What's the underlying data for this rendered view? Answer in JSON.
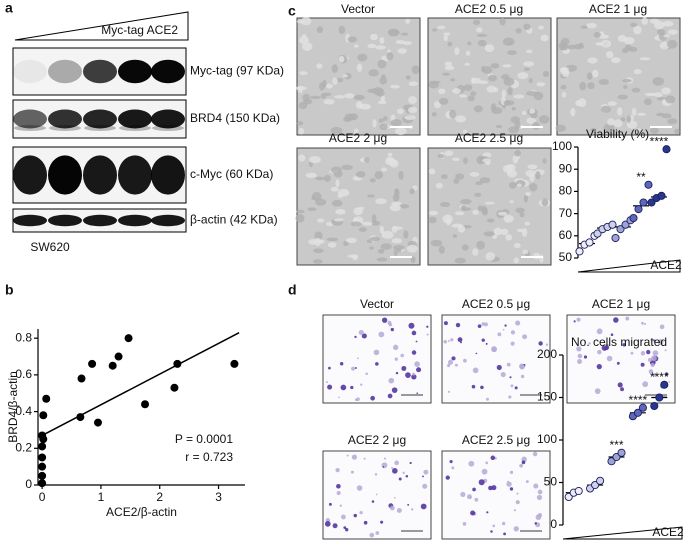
{
  "panel_labels": [
    "a",
    "b",
    "c",
    "d"
  ],
  "blot": {
    "treatment": "Myc-tag ACE2",
    "bands": [
      "Myc-tag (97 KDa)",
      "BRD4 (150 KDa)",
      "c-Myc (60 KDa)",
      "β-actin (42 KDa)"
    ],
    "cell_line": "SW620"
  },
  "micrographs": {
    "viability_images": [
      "Vector",
      "ACE2 0.5 μg",
      "ACE2 1 μg",
      "ACE2 2 μg",
      "ACE2 2.5 μg"
    ],
    "migration_images": [
      "Vector",
      "ACE2 0.5 μg",
      "ACE2 1 μg",
      "ACE2 2 μg",
      "ACE2 2.5 μg"
    ]
  },
  "chart_data": [
    {
      "type": "scatter",
      "x_label": "ACE2/β-actin",
      "y_label": "BRD4/β-actin",
      "annotations": [
        "P = 0.0001",
        "r = 0.723"
      ],
      "x": [
        0.02,
        0.07,
        0.0,
        0.02,
        0.0,
        0.0,
        0.0,
        0.0,
        0.0,
        0.65,
        0.67,
        0.85,
        0.95,
        1.2,
        1.3,
        1.47,
        1.75,
        2.25,
        2.3,
        3.27
      ],
      "values": [
        0.38,
        0.47,
        0.27,
        0.25,
        0.21,
        0.15,
        0.1,
        0.05,
        0.01,
        0.37,
        0.58,
        0.66,
        0.34,
        0.65,
        0.7,
        0.8,
        0.44,
        0.53,
        0.66,
        0.66
      ],
      "color": "#000000",
      "fit": {
        "x": [
          0,
          3.35
        ],
        "y": [
          0.27,
          0.83
        ]
      },
      "xlim": [
        -0.07,
        3.45
      ],
      "xticks": [
        0,
        1,
        2,
        3
      ],
      "ylim": [
        0,
        0.85
      ],
      "yticks": [
        0,
        0.2,
        0.4,
        0.6,
        0.8
      ]
    },
    {
      "type": "dot",
      "title": "Viability (%)",
      "x_label": "ACE2",
      "ylim": [
        50,
        100
      ],
      "yticks": [
        50,
        60,
        70,
        80,
        90,
        100
      ],
      "groups": [
        {
          "color": "#efeef8",
          "values": [
            53,
            56,
            57,
            60
          ]
        },
        {
          "color": "#cfd0ea",
          "values": [
            61,
            63,
            64,
            65
          ]
        },
        {
          "color": "#9ea3d6",
          "values": [
            59,
            63,
            65,
            67
          ]
        },
        {
          "color": "#5e67b9",
          "values": [
            68,
            72,
            75,
            83
          ],
          "annotation": "**"
        },
        {
          "color": "#2a3590",
          "values": [
            75,
            77,
            78,
            99
          ],
          "annotation": "****"
        }
      ]
    },
    {
      "type": "dot",
      "title": "No. cells migrated",
      "x_label": "ACE2",
      "ylim": [
        0,
        200
      ],
      "yticks": [
        0,
        50,
        100,
        150,
        200
      ],
      "groups": [
        {
          "color": "#efeef8",
          "values": [
            33,
            38,
            40
          ]
        },
        {
          "color": "#cfd0ea",
          "values": [
            43,
            47,
            52
          ]
        },
        {
          "color": "#9ea3d6",
          "values": [
            75,
            80,
            85
          ],
          "annotation": "***"
        },
        {
          "color": "#5e67b9",
          "values": [
            128,
            132,
            138
          ],
          "annotation": "****"
        },
        {
          "color": "#2a3590",
          "values": [
            140,
            150,
            165
          ],
          "annotation": "****"
        }
      ]
    }
  ]
}
